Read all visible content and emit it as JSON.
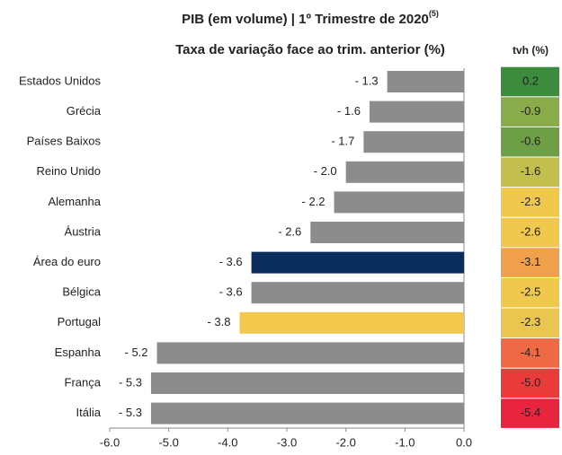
{
  "chart_data": {
    "type": "hbar",
    "title": "PIB (em volume) | 1º Trimestre de 2020",
    "title_note": "(5)",
    "subtitle": "Taxa de variação face ao trim. anterior (%)",
    "categories": [
      "Estados Unidos",
      "Grécia",
      "Países Baixos",
      "Reino Unido",
      "Alemanha",
      "Áustria",
      "Área do euro",
      "Bélgica",
      "Portugal",
      "Espanha",
      "França",
      "Itália"
    ],
    "values": [
      -1.3,
      -1.6,
      -1.7,
      -2.0,
      -2.2,
      -2.6,
      -3.6,
      -3.6,
      -3.8,
      -5.2,
      -5.3,
      -5.3
    ],
    "value_labels": [
      "- 1.3",
      "- 1.6",
      "- 1.7",
      "- 2.0",
      "- 2.2",
      "- 2.6",
      "- 3.6",
      "- 3.6",
      "- 3.8",
      "- 5.2",
      "- 5.3",
      "- 5.3"
    ],
    "colors": [
      "#8c8c8c",
      "#8c8c8c",
      "#8c8c8c",
      "#8c8c8c",
      "#8c8c8c",
      "#8c8c8c",
      "#0b2d5e",
      "#8c8c8c",
      "#f2c94c",
      "#8c8c8c",
      "#8c8c8c",
      "#8c8c8c"
    ],
    "xlim": [
      -6,
      0
    ],
    "xticks": [
      {
        "value": -6,
        "label": "-6.0"
      },
      {
        "value": -5,
        "label": "-5.0"
      },
      {
        "value": -4,
        "label": "-4.0"
      },
      {
        "value": -3,
        "label": "-3.0"
      },
      {
        "value": -2,
        "label": "-2.0"
      },
      {
        "value": -1,
        "label": "-1.0"
      },
      {
        "value": 0,
        "label": "0.0"
      }
    ],
    "tvh": {
      "name": "tvh (%)",
      "values": [
        0.2,
        -0.9,
        -0.6,
        -1.6,
        -2.3,
        -2.6,
        -3.1,
        -2.5,
        -2.3,
        -4.1,
        -5.0,
        -5.4
      ],
      "value_labels": [
        "0.2",
        "-0.9",
        "-0.6",
        "-1.6",
        "-2.3",
        "-2.6",
        "-3.1",
        "-2.5",
        "-2.3",
        "-4.1",
        "-5.0",
        "-5.4"
      ],
      "colors": [
        "#3d8b3d",
        "#8aab4a",
        "#6e9e45",
        "#c3bf4f",
        "#f0c84e",
        "#f0c84e",
        "#f0a04b",
        "#f0c84e",
        "#eac650",
        "#ee6a45",
        "#ea3b3b",
        "#e8253f"
      ]
    }
  }
}
